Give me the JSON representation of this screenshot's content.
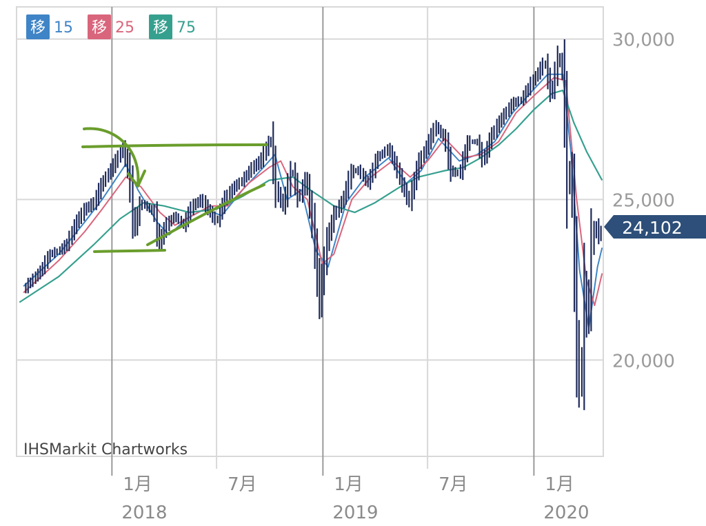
{
  "legend": [
    {
      "badge": "移",
      "period": "15",
      "color": "#3f84c6"
    },
    {
      "badge": "移",
      "period": "25",
      "color": "#d9657c"
    },
    {
      "badge": "移",
      "period": "75",
      "color": "#36a08f"
    }
  ],
  "credit": "IHSMarkit Chartworks",
  "last_price": "24,102",
  "colors": {
    "candle": "#1d2a59",
    "grid": "#d8d8d8",
    "major_grid": "#9a9a9a",
    "annotation": "#6a9d2c",
    "price_tag_bg": "#2d4f79"
  },
  "chart_data": {
    "type": "line",
    "title": "",
    "xlabel": "",
    "ylabel": "",
    "x_tick_labels": [
      {
        "date": "2018-01",
        "month": "1月",
        "year": "2018"
      },
      {
        "date": "2018-07",
        "month": "7月",
        "year": ""
      },
      {
        "date": "2019-01",
        "month": "1月",
        "year": "2019"
      },
      {
        "date": "2019-07",
        "month": "7月",
        "year": ""
      },
      {
        "date": "2020-01",
        "month": "1月",
        "year": "2020"
      }
    ],
    "y_tick_labels": [
      "30,000",
      "25,000",
      "20,000"
    ],
    "y_ticks": [
      30000,
      25000,
      20000
    ],
    "xlim": [
      "2017-07-20",
      "2020-04-30"
    ],
    "ylim": [
      17000,
      31000
    ],
    "grid": true,
    "legend_position": "top-left",
    "price": [
      [
        "2017-08-01",
        22200
      ],
      [
        "2017-09-01",
        22800
      ],
      [
        "2017-09-15",
        23300
      ],
      [
        "2017-10-01",
        23400
      ],
      [
        "2017-10-15",
        23600
      ],
      [
        "2017-11-01",
        24300
      ],
      [
        "2017-11-15",
        24700
      ],
      [
        "2017-12-01",
        24900
      ],
      [
        "2017-12-15",
        25500
      ],
      [
        "2018-01-05",
        26100
      ],
      [
        "2018-01-20",
        26600
      ],
      [
        "2018-01-31",
        25800
      ],
      [
        "2018-02-08",
        24000
      ],
      [
        "2018-02-20",
        24900
      ],
      [
        "2018-03-01",
        24800
      ],
      [
        "2018-03-15",
        24600
      ],
      [
        "2018-03-23",
        23600
      ],
      [
        "2018-04-05",
        24200
      ],
      [
        "2018-04-20",
        24500
      ],
      [
        "2018-05-05",
        24200
      ],
      [
        "2018-05-20",
        24800
      ],
      [
        "2018-06-05",
        25000
      ],
      [
        "2018-06-20",
        24600
      ],
      [
        "2018-07-01",
        24300
      ],
      [
        "2018-07-15",
        25000
      ],
      [
        "2018-08-01",
        25400
      ],
      [
        "2018-08-15",
        25600
      ],
      [
        "2018-09-01",
        26000
      ],
      [
        "2018-09-15",
        26200
      ],
      [
        "2018-10-03",
        26900
      ],
      [
        "2018-10-12",
        25300
      ],
      [
        "2018-10-25",
        24800
      ],
      [
        "2018-11-08",
        26000
      ],
      [
        "2018-11-20",
        25000
      ],
      [
        "2018-12-03",
        25700
      ],
      [
        "2018-12-15",
        24100
      ],
      [
        "2018-12-26",
        21800
      ],
      [
        "2019-01-08",
        23700
      ],
      [
        "2019-01-20",
        24500
      ],
      [
        "2019-02-05",
        25000
      ],
      [
        "2019-02-20",
        25900
      ],
      [
        "2019-03-05",
        25900
      ],
      [
        "2019-03-20",
        25500
      ],
      [
        "2019-04-05",
        26300
      ],
      [
        "2019-04-25",
        26600
      ],
      [
        "2019-05-10",
        25900
      ],
      [
        "2019-05-30",
        24900
      ],
      [
        "2019-06-15",
        26100
      ],
      [
        "2019-07-01",
        26700
      ],
      [
        "2019-07-15",
        27300
      ],
      [
        "2019-07-31",
        26900
      ],
      [
        "2019-08-10",
        25900
      ],
      [
        "2019-08-25",
        25800
      ],
      [
        "2019-09-10",
        26800
      ],
      [
        "2019-09-25",
        26800
      ],
      [
        "2019-10-05",
        26200
      ],
      [
        "2019-10-20",
        27000
      ],
      [
        "2019-11-05",
        27500
      ],
      [
        "2019-11-25",
        28000
      ],
      [
        "2019-12-10",
        28100
      ],
      [
        "2019-12-27",
        28600
      ],
      [
        "2020-01-10",
        29000
      ],
      [
        "2020-01-20",
        29300
      ],
      [
        "2020-01-31",
        28200
      ],
      [
        "2020-02-12",
        29500
      ],
      [
        "2020-02-21",
        28900
      ],
      [
        "2020-02-28",
        25400
      ],
      [
        "2020-03-05",
        26100
      ],
      [
        "2020-03-10",
        23700
      ],
      [
        "2020-03-16",
        20200
      ],
      [
        "2020-03-23",
        18600
      ],
      [
        "2020-03-26",
        22600
      ],
      [
        "2020-04-03",
        21000
      ],
      [
        "2020-04-10",
        23700
      ],
      [
        "2020-04-17",
        24200
      ],
      [
        "2020-04-24",
        23800
      ],
      [
        "2020-04-28",
        24102
      ]
    ],
    "series": [
      {
        "name": "15",
        "values": [
          [
            "2017-08-01",
            22300
          ],
          [
            "2017-10-01",
            23300
          ],
          [
            "2017-11-15",
            24300
          ],
          [
            "2017-12-15",
            25000
          ],
          [
            "2018-01-25",
            26100
          ],
          [
            "2018-02-15",
            25300
          ],
          [
            "2018-03-20",
            24300
          ],
          [
            "2018-04-10",
            23900
          ],
          [
            "2018-05-10",
            24400
          ],
          [
            "2018-06-10",
            24700
          ],
          [
            "2018-07-10",
            24500
          ],
          [
            "2018-08-15",
            25300
          ],
          [
            "2018-09-20",
            26000
          ],
          [
            "2018-10-10",
            26400
          ],
          [
            "2018-10-31",
            25000
          ],
          [
            "2018-11-25",
            25300
          ],
          [
            "2018-12-20",
            23400
          ],
          [
            "2019-01-10",
            22900
          ],
          [
            "2019-02-10",
            24900
          ],
          [
            "2019-03-15",
            25700
          ],
          [
            "2019-04-25",
            26300
          ],
          [
            "2019-05-25",
            25500
          ],
          [
            "2019-06-20",
            25900
          ],
          [
            "2019-07-20",
            26900
          ],
          [
            "2019-08-25",
            26200
          ],
          [
            "2019-09-25",
            26400
          ],
          [
            "2019-10-25",
            26800
          ],
          [
            "2019-11-25",
            27700
          ],
          [
            "2019-12-25",
            28300
          ],
          [
            "2020-01-25",
            28900
          ],
          [
            "2020-02-20",
            28900
          ],
          [
            "2020-03-05",
            26500
          ],
          [
            "2020-03-20",
            22800
          ],
          [
            "2020-04-05",
            21000
          ],
          [
            "2020-04-20",
            22900
          ],
          [
            "2020-04-28",
            23500
          ]
        ]
      },
      {
        "name": "25",
        "values": [
          [
            "2017-08-01",
            22100
          ],
          [
            "2017-10-01",
            23100
          ],
          [
            "2017-11-15",
            24000
          ],
          [
            "2017-12-15",
            24700
          ],
          [
            "2018-01-25",
            25700
          ],
          [
            "2018-02-20",
            25400
          ],
          [
            "2018-03-25",
            24600
          ],
          [
            "2018-04-20",
            24200
          ],
          [
            "2018-05-20",
            24500
          ],
          [
            "2018-06-20",
            24800
          ],
          [
            "2018-07-20",
            24800
          ],
          [
            "2018-08-25",
            25500
          ],
          [
            "2018-09-30",
            26000
          ],
          [
            "2018-10-20",
            26200
          ],
          [
            "2018-11-10",
            25400
          ],
          [
            "2018-12-05",
            25000
          ],
          [
            "2018-12-31",
            23000
          ],
          [
            "2019-01-20",
            23300
          ],
          [
            "2019-02-20",
            25000
          ],
          [
            "2019-03-25",
            25700
          ],
          [
            "2019-05-01",
            26200
          ],
          [
            "2019-06-01",
            25700
          ],
          [
            "2019-07-01",
            26200
          ],
          [
            "2019-07-31",
            26900
          ],
          [
            "2019-09-01",
            26300
          ],
          [
            "2019-10-01",
            26400
          ],
          [
            "2019-11-01",
            26800
          ],
          [
            "2019-12-01",
            27700
          ],
          [
            "2020-01-05",
            28300
          ],
          [
            "2020-02-05",
            28800
          ],
          [
            "2020-02-25",
            28700
          ],
          [
            "2020-03-15",
            25000
          ],
          [
            "2020-04-01",
            22500
          ],
          [
            "2020-04-15",
            21700
          ],
          [
            "2020-04-28",
            22700
          ]
        ]
      },
      {
        "name": "75",
        "values": [
          [
            "2017-07-25",
            21800
          ],
          [
            "2017-10-01",
            22600
          ],
          [
            "2017-12-01",
            23600
          ],
          [
            "2018-01-15",
            24400
          ],
          [
            "2018-02-25",
            24900
          ],
          [
            "2018-04-01",
            24800
          ],
          [
            "2018-05-15",
            24600
          ],
          [
            "2018-07-01",
            24700
          ],
          [
            "2018-08-15",
            25100
          ],
          [
            "2018-09-30",
            25600
          ],
          [
            "2018-11-10",
            25700
          ],
          [
            "2018-12-10",
            25300
          ],
          [
            "2019-01-20",
            24800
          ],
          [
            "2019-02-25",
            24600
          ],
          [
            "2019-04-01",
            24900
          ],
          [
            "2019-05-15",
            25400
          ],
          [
            "2019-06-15",
            25700
          ],
          [
            "2019-07-31",
            25900
          ],
          [
            "2019-09-01",
            26000
          ],
          [
            "2019-10-01",
            26300
          ],
          [
            "2019-11-01",
            26700
          ],
          [
            "2019-12-01",
            27200
          ],
          [
            "2020-01-01",
            27800
          ],
          [
            "2020-02-01",
            28300
          ],
          [
            "2020-02-20",
            28400
          ],
          [
            "2020-03-10",
            27400
          ],
          [
            "2020-04-01",
            26500
          ],
          [
            "2020-04-28",
            25600
          ]
        ]
      }
    ]
  }
}
